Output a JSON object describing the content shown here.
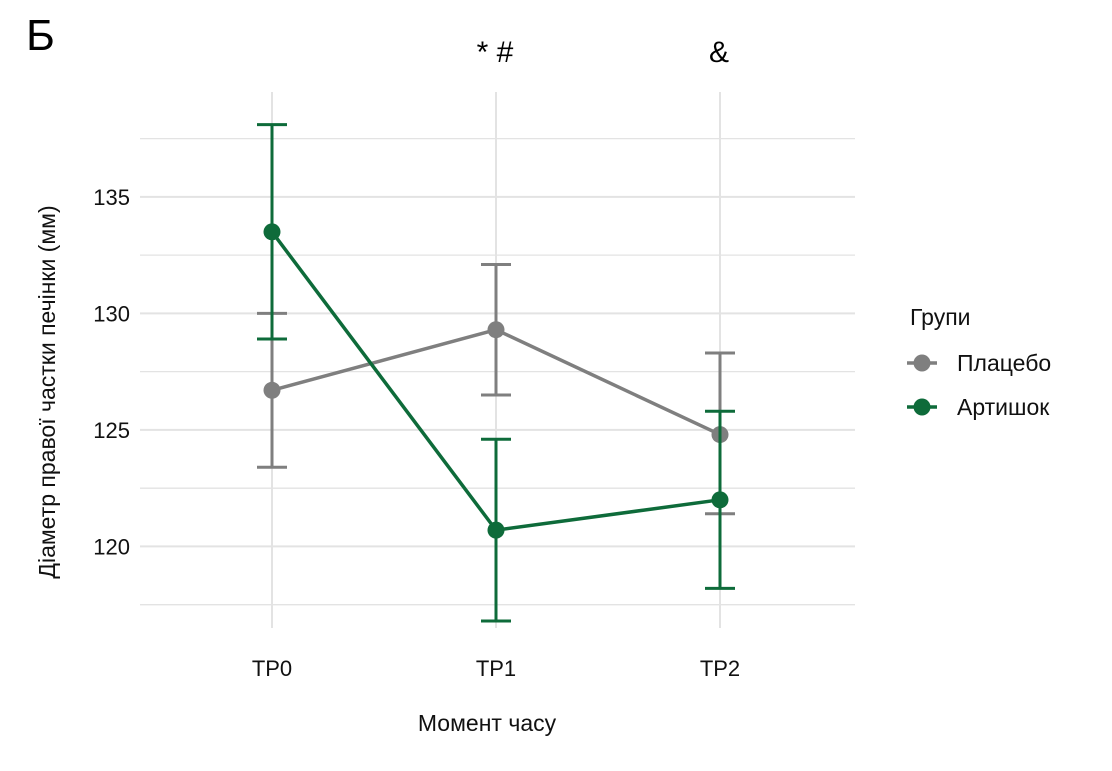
{
  "panel_label": "Б",
  "annotations": [
    {
      "category": "TP1",
      "text": "* #"
    },
    {
      "category": "TP2",
      "text": "&"
    }
  ],
  "legend": {
    "title": "Групи",
    "placement": "right",
    "items": [
      {
        "label": "Плацебо",
        "color": "#7f7f7f"
      },
      {
        "label": "Артишок",
        "color": "#0e6b3a"
      }
    ]
  },
  "colors": {
    "placebo": "#7f7f7f",
    "artichoke": "#0e6b3a",
    "grid": "#e3e3e3"
  },
  "chart_data": {
    "type": "line",
    "title": "",
    "xlabel": "Момент часу",
    "ylabel": "Діаметр правої частки печінки (мм)",
    "categories": [
      "TP0",
      "TP1",
      "TP2"
    ],
    "ylim": [
      116.5,
      139.5
    ],
    "yticks": [
      120,
      125,
      130,
      135
    ],
    "grid": true,
    "error_bars": true,
    "series": [
      {
        "name": "Плацебо",
        "color": "#7f7f7f",
        "values": [
          126.7,
          129.3,
          124.8
        ],
        "lower": [
          123.4,
          126.5,
          121.4
        ],
        "upper": [
          130.0,
          132.1,
          128.3
        ]
      },
      {
        "name": "Артишок",
        "color": "#0e6b3a",
        "values": [
          133.5,
          120.7,
          122.0
        ],
        "lower": [
          128.9,
          116.8,
          118.2
        ],
        "upper": [
          138.1,
          124.6,
          125.8
        ]
      }
    ]
  }
}
